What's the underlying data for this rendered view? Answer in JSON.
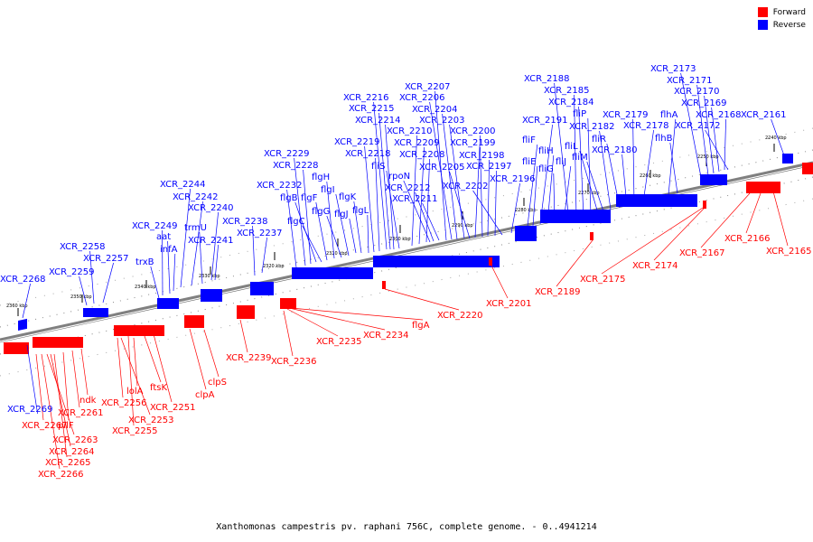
{
  "caption": "Xanthomonas campestris pv. raphani 756C, complete genome. - 0..4941214",
  "legend": [
    {
      "label": "Forward",
      "color": "#ff0000"
    },
    {
      "label": "Reverse",
      "color": "#0000ff"
    }
  ],
  "colors": {
    "forward": "#ff0000",
    "reverse": "#0000ff",
    "axis": "#808080"
  },
  "scale_ticks": [
    "2240 kbp",
    "2250 kbp",
    "2260 kbp",
    "2270 kbp",
    "2280 kbp",
    "2290 kbp",
    "2300 kbp",
    "2310 kbp",
    "2320 kbp",
    "2330 kbp",
    "2340 kbp",
    "2350 kbp",
    "2360 kbp"
  ],
  "reverse_labels": [
    "XCR_2268",
    "XCR_2259",
    "XCR_2258",
    "XCR_2257",
    "trxB",
    "XCR_2249",
    "aat",
    "infA",
    "XCR_2244",
    "XCR_2242",
    "trmU",
    "XCR_2240",
    "XCR_2241",
    "XCR_2238",
    "XCR_2237",
    "XCR_2232",
    "XCR_2229",
    "XCR_2228",
    "flgB",
    "flgC",
    "flgF",
    "flgH",
    "flgG",
    "flgI",
    "flgJ",
    "flgK",
    "flgL",
    "XCR_2219",
    "XCR_2218",
    "XCR_2216",
    "XCR_2215",
    "XCR_2214",
    "fliS",
    "XCR_2210",
    "XCR_2209",
    "XCR_2208",
    "rpoN",
    "XCR_2212",
    "XCR_2211",
    "XCR_2207",
    "XCR_2206",
    "XCR_2204",
    "XCR_2203",
    "XCR_2205",
    "XCR_2200",
    "XCR_2199",
    "XCR_2198",
    "XCR_2197",
    "XCR_2202",
    "XCR_2196",
    "fliF",
    "fliE",
    "XCR_2191",
    "fliH",
    "fliG",
    "fliJ",
    "XCR_2188",
    "XCR_2185",
    "XCR_2184",
    "fliP",
    "fliL",
    "fliM",
    "XCR_2182",
    "fliR",
    "XCR_2180",
    "XCR_2179",
    "XCR_2178",
    "flhA",
    "flhB",
    "XCR_2173",
    "XCR_2171",
    "XCR_2170",
    "XCR_2169",
    "XCR_2168",
    "XCR_2172",
    "XCR_2161",
    "XCR_2269"
  ],
  "forward_labels": [
    "XCR_2267",
    "pilF",
    "XCR_2263",
    "XCR_2264",
    "XCR_2265",
    "XCR_2266",
    "XCR_2261",
    "ndk",
    "XCR_2256",
    "lolA",
    "XCR_2253",
    "XCR_2255",
    "ftsK",
    "XCR_2251",
    "clpS",
    "clpA",
    "XCR_2239",
    "XCR_2236",
    "XCR_2235",
    "XCR_2234",
    "flgA",
    "XCR_2220",
    "XCR_2201",
    "XCR_2189",
    "XCR_2175",
    "XCR_2174",
    "XCR_2167",
    "XCR_2166",
    "XCR_2165"
  ]
}
